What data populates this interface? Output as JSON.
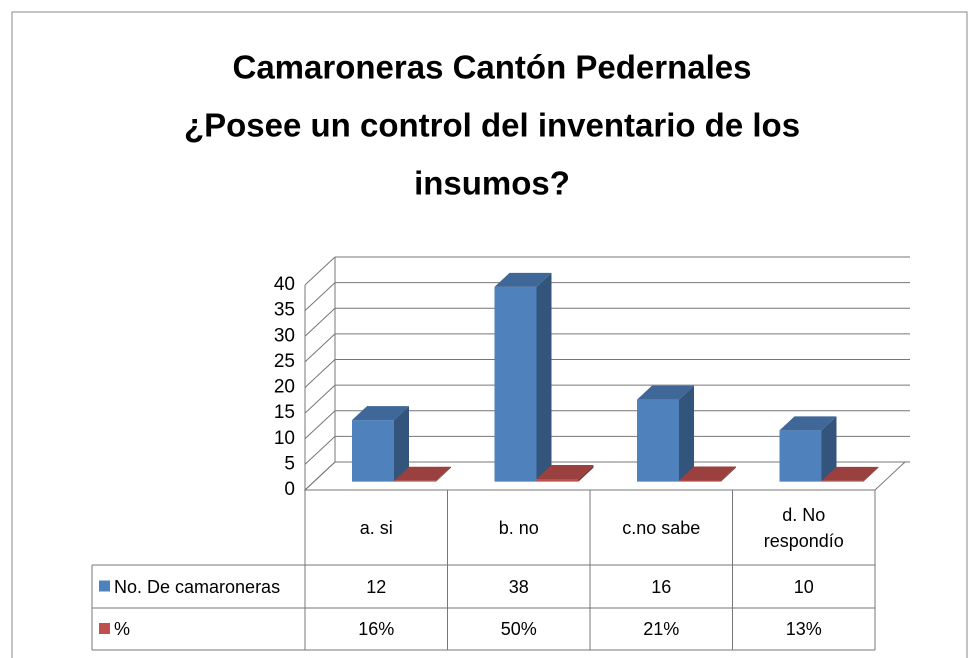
{
  "chart_data": {
    "type": "bar",
    "title": [
      "Camaroneras Cantón Pedernales",
      "¿Posee un control del inventario de los",
      "insumos?"
    ],
    "categories": [
      "a. si",
      "b. no",
      "c.no sabe",
      "d. No respondío"
    ],
    "series": [
      {
        "name": "No. De camaroneras",
        "color": "#4f81bd",
        "values": [
          12,
          38,
          16,
          10
        ]
      },
      {
        "name": "%",
        "color": "#c0504d",
        "values": [
          0.16,
          0.5,
          0.21,
          0.13
        ],
        "value_labels": [
          "16%",
          "50%",
          "21%",
          "13%"
        ]
      }
    ],
    "ylim": [
      0,
      40
    ],
    "yticks": [
      0,
      5,
      10,
      15,
      20,
      25,
      30,
      35,
      40
    ],
    "grid": true
  }
}
